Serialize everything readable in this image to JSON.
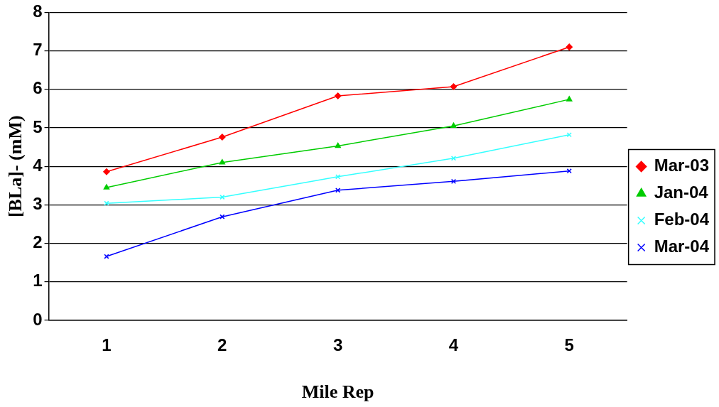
{
  "chart_data": {
    "type": "line",
    "xlabel": "Mile Rep",
    "ylabel": "[BLa]- (mM)",
    "categories": [
      "1",
      "2",
      "3",
      "4",
      "5"
    ],
    "series": [
      {
        "name": "Mar-03",
        "color": "#ff0000",
        "marker": "diamond",
        "values": [
          3.86,
          4.76,
          5.83,
          6.07,
          7.1
        ]
      },
      {
        "name": "Jan-04",
        "color": "#00cc00",
        "marker": "triangle",
        "values": [
          3.45,
          4.1,
          4.53,
          5.05,
          5.74
        ]
      },
      {
        "name": "Feb-04",
        "color": "#33ffff",
        "marker": "cross",
        "values": [
          3.04,
          3.2,
          3.73,
          4.21,
          4.82
        ]
      },
      {
        "name": "Mar-04",
        "color": "#0000ff",
        "marker": "cross",
        "values": [
          1.66,
          2.69,
          3.38,
          3.61,
          3.88
        ]
      }
    ],
    "ylim": [
      0,
      8
    ],
    "yticks": [
      0,
      1,
      2,
      3,
      4,
      5,
      6,
      7,
      8
    ],
    "grid": "y",
    "legend": "right",
    "line_style": "solid"
  }
}
